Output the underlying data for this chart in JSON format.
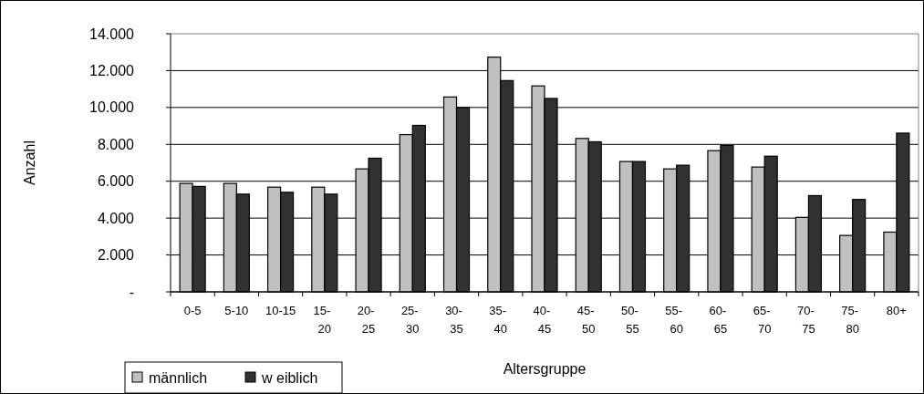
{
  "chart_data": {
    "type": "bar",
    "xlabel": "Altersgruppe",
    "ylabel": "Anzahl",
    "categories": [
      "0-5",
      "5-10",
      "10-15",
      "15- 20",
      "20- 25",
      "25- 30",
      "30- 35",
      "35- 40",
      "40- 45",
      "45- 50",
      "50- 55",
      "55- 60",
      "60- 65",
      "65- 70",
      "70- 75",
      "75- 80",
      "80+"
    ],
    "series": [
      {
        "name": "männlich",
        "color": "#c0c0c0",
        "values": [
          5880,
          5880,
          5680,
          5680,
          6670,
          8530,
          10570,
          12730,
          11170,
          8320,
          7070,
          6670,
          7660,
          6770,
          4040,
          3060,
          3240
        ]
      },
      {
        "name": "w eiblich",
        "color": "#333033",
        "values": [
          5720,
          5300,
          5400,
          5300,
          7250,
          9030,
          10000,
          11460,
          10490,
          8140,
          7070,
          6870,
          7940,
          7360,
          5220,
          5010,
          8610
        ]
      }
    ],
    "ylim": [
      0,
      14000
    ],
    "yticks": [
      {
        "value": 0,
        "label": "-"
      },
      {
        "value": 2000,
        "label": "2.000"
      },
      {
        "value": 4000,
        "label": "4.000"
      },
      {
        "value": 6000,
        "label": "6.000"
      },
      {
        "value": 8000,
        "label": "8.000"
      },
      {
        "value": 10000,
        "label": "10.000"
      },
      {
        "value": 12000,
        "label": "12.000"
      },
      {
        "value": 14000,
        "label": "14.000"
      }
    ],
    "grid": "y",
    "legend": "bottom left"
  }
}
